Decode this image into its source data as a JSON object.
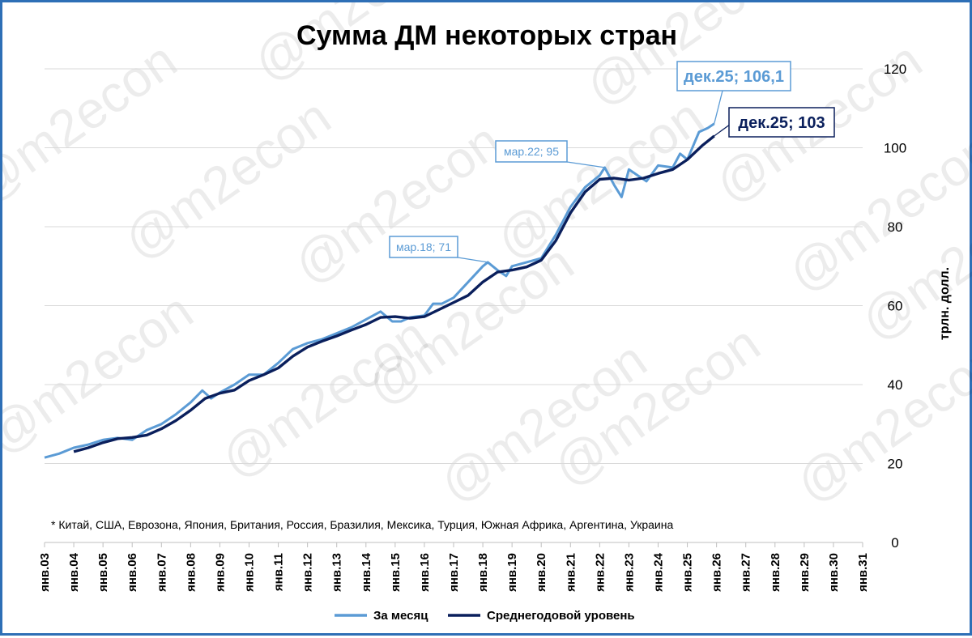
{
  "chart_data": {
    "type": "line",
    "title": "Сумма ДМ некоторых стран",
    "ylabel": "трлн. долл.",
    "ylim": [
      0,
      120
    ],
    "yticks": [
      0,
      20,
      40,
      60,
      80,
      100,
      120
    ],
    "xlim": [
      2003.0,
      2031.0
    ],
    "x_ticks": [
      "янв.03",
      "янв.04",
      "янв.05",
      "янв.06",
      "янв.07",
      "янв.08",
      "янв.09",
      "янв.10",
      "янв.11",
      "янв.12",
      "янв.13",
      "янв.14",
      "янв.15",
      "янв.16",
      "янв.17",
      "янв.18",
      "янв.19",
      "янв.20",
      "янв.21",
      "янв.22",
      "янв.23",
      "янв.24",
      "янв.25",
      "янв.26",
      "янв.27",
      "янв.28",
      "янв.29",
      "янв.30",
      "янв.31"
    ],
    "grid": true,
    "legend_position": "bottom",
    "footnote": "* Китай, США, Еврозона, Япония, Британия, Россия, Бразилия, Мексика, Турция, Южная Африка, Аргентина, Украина",
    "series": [
      {
        "name": "За месяц",
        "color": "#5b9bd5",
        "points": [
          [
            2003.0,
            21.5
          ],
          [
            2003.5,
            22.5
          ],
          [
            2004.0,
            24.0
          ],
          [
            2004.5,
            24.8
          ],
          [
            2005.0,
            26.0
          ],
          [
            2005.5,
            26.5
          ],
          [
            2006.0,
            26.0
          ],
          [
            2006.5,
            28.5
          ],
          [
            2007.0,
            30.0
          ],
          [
            2007.5,
            32.5
          ],
          [
            2008.0,
            35.5
          ],
          [
            2008.4,
            38.5
          ],
          [
            2008.7,
            36.5
          ],
          [
            2009.0,
            38.0
          ],
          [
            2009.5,
            40.0
          ],
          [
            2010.0,
            42.5
          ],
          [
            2010.5,
            42.5
          ],
          [
            2011.0,
            45.5
          ],
          [
            2011.5,
            49.0
          ],
          [
            2012.0,
            50.5
          ],
          [
            2012.5,
            51.5
          ],
          [
            2013.0,
            53.0
          ],
          [
            2013.5,
            54.5
          ],
          [
            2014.0,
            56.5
          ],
          [
            2014.5,
            58.5
          ],
          [
            2014.9,
            56.0
          ],
          [
            2015.2,
            56.0
          ],
          [
            2015.5,
            57.0
          ],
          [
            2016.0,
            57.5
          ],
          [
            2016.3,
            60.5
          ],
          [
            2016.6,
            60.5
          ],
          [
            2017.0,
            62.0
          ],
          [
            2017.5,
            66.0
          ],
          [
            2018.0,
            70.0
          ],
          [
            2018.17,
            71.0
          ],
          [
            2018.5,
            69.0
          ],
          [
            2018.8,
            67.5
          ],
          [
            2019.0,
            70.0
          ],
          [
            2019.5,
            71.0
          ],
          [
            2020.0,
            72.0
          ],
          [
            2020.5,
            78.0
          ],
          [
            2021.0,
            85.0
          ],
          [
            2021.5,
            90.0
          ],
          [
            2022.0,
            93.0
          ],
          [
            2022.17,
            95.0
          ],
          [
            2022.5,
            90.5
          ],
          [
            2022.75,
            87.5
          ],
          [
            2023.0,
            94.5
          ],
          [
            2023.3,
            93.0
          ],
          [
            2023.6,
            91.5
          ],
          [
            2024.0,
            95.5
          ],
          [
            2024.5,
            95.0
          ],
          [
            2024.75,
            98.5
          ],
          [
            2025.0,
            97.0
          ],
          [
            2025.4,
            104.0
          ],
          [
            2025.7,
            105.0
          ],
          [
            2025.92,
            106.1
          ]
        ]
      },
      {
        "name": "Среднегодовой уровень",
        "color": "#0a1f5c",
        "points": [
          [
            2004.0,
            23.0
          ],
          [
            2004.5,
            24.0
          ],
          [
            2005.0,
            25.3
          ],
          [
            2005.5,
            26.3
          ],
          [
            2006.0,
            26.6
          ],
          [
            2006.5,
            27.2
          ],
          [
            2007.0,
            28.8
          ],
          [
            2007.5,
            30.9
          ],
          [
            2008.0,
            33.5
          ],
          [
            2008.5,
            36.5
          ],
          [
            2009.0,
            37.8
          ],
          [
            2009.5,
            38.6
          ],
          [
            2010.0,
            41.0
          ],
          [
            2010.5,
            42.5
          ],
          [
            2011.0,
            44.2
          ],
          [
            2011.5,
            47.2
          ],
          [
            2012.0,
            49.5
          ],
          [
            2012.5,
            51.0
          ],
          [
            2013.0,
            52.3
          ],
          [
            2013.5,
            53.8
          ],
          [
            2014.0,
            55.2
          ],
          [
            2014.5,
            57.0
          ],
          [
            2015.0,
            57.2
          ],
          [
            2015.5,
            56.8
          ],
          [
            2016.0,
            57.2
          ],
          [
            2016.5,
            59.0
          ],
          [
            2017.0,
            60.8
          ],
          [
            2017.5,
            62.6
          ],
          [
            2018.0,
            66.0
          ],
          [
            2018.5,
            68.5
          ],
          [
            2019.0,
            69.0
          ],
          [
            2019.5,
            69.8
          ],
          [
            2020.0,
            71.5
          ],
          [
            2020.5,
            76.5
          ],
          [
            2021.0,
            83.5
          ],
          [
            2021.5,
            88.8
          ],
          [
            2022.0,
            92.0
          ],
          [
            2022.5,
            92.3
          ],
          [
            2023.0,
            91.8
          ],
          [
            2023.5,
            92.3
          ],
          [
            2024.0,
            93.5
          ],
          [
            2024.5,
            94.5
          ],
          [
            2025.0,
            97.0
          ],
          [
            2025.5,
            100.5
          ],
          [
            2025.92,
            103.0
          ]
        ]
      }
    ],
    "annotations": [
      {
        "text": "мар.18; 71",
        "x": 2018.17,
        "y": 71,
        "series": 0
      },
      {
        "text": "мар.22; 95",
        "x": 2022.17,
        "y": 95,
        "series": 0
      },
      {
        "text": "дек.25; 106,1",
        "x": 2025.92,
        "y": 106.1,
        "series": 0
      },
      {
        "text": "дек.25; 103",
        "x": 2025.92,
        "y": 103,
        "series": 1
      }
    ]
  },
  "watermark": "@m2econ"
}
